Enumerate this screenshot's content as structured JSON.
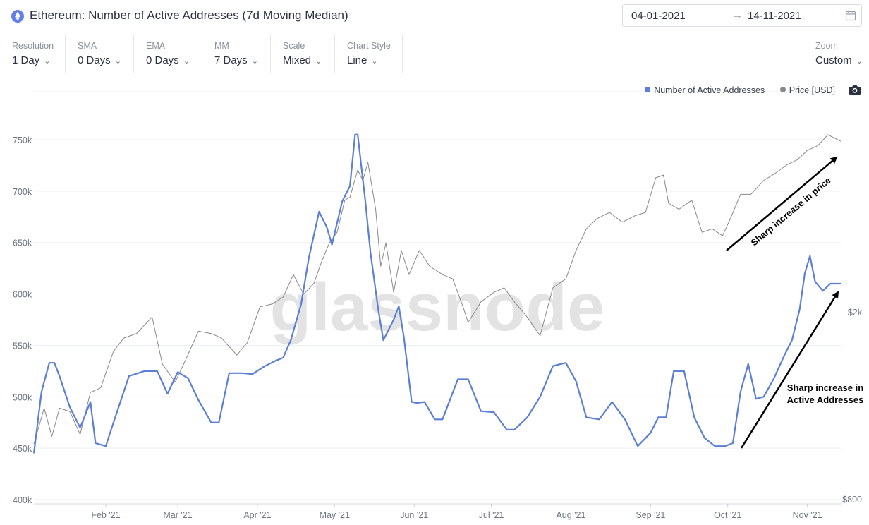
{
  "header": {
    "title": "Ethereum: Number of Active Addresses (7d Moving Median)",
    "date_start": "04-01-2021",
    "date_arrow": "→",
    "date_end": "14-11-2021"
  },
  "toolbar": {
    "controls": [
      {
        "label": "Resolution",
        "value": "1 Day"
      },
      {
        "label": "SMA",
        "value": "0 Days"
      },
      {
        "label": "EMA",
        "value": "0 Days"
      },
      {
        "label": "MM",
        "value": "7 Days"
      },
      {
        "label": "Scale",
        "value": "Mixed"
      },
      {
        "label": "Chart Style",
        "value": "Line"
      }
    ],
    "zoom": {
      "label": "Zoom",
      "value": "Custom"
    }
  },
  "legend": {
    "series1": "Number of Active Addresses",
    "series2": "Price [USD]"
  },
  "colors": {
    "addresses": "#5b7fd6",
    "price": "#888888",
    "annotation": "#000000",
    "eth_icon": "#627eea"
  },
  "icons": [
    "ethereum-icon",
    "calendar-icon",
    "chevron-down-icon",
    "camera-icon"
  ],
  "watermark": "glassnode",
  "chart_data": {
    "type": "line",
    "title": "Ethereum: Number of Active Addresses (7d Moving Median)",
    "x_ticks": [
      "Feb '21",
      "Mar '21",
      "Apr '21",
      "May '21",
      "Jun '21",
      "Jul '21",
      "Aug '21",
      "Sep '21",
      "Oct '21",
      "Nov '21"
    ],
    "y_left_ticks": [
      "400k",
      "450k",
      "500k",
      "550k",
      "600k",
      "650k",
      "700k",
      "750k"
    ],
    "y_left_range": [
      400000,
      760000
    ],
    "y_right_ticks": [
      "$800",
      "$2k"
    ],
    "y_right_scale": "log",
    "grid": true,
    "legend_position": "top-right",
    "series": [
      {
        "name": "Number of Active Addresses",
        "axis": "left",
        "x": [
          "2021-01-04",
          "2021-01-07",
          "2021-01-10",
          "2021-01-12",
          "2021-01-14",
          "2021-01-18",
          "2021-01-22",
          "2021-01-26",
          "2021-01-28",
          "2021-02-01",
          "2021-02-04",
          "2021-02-06",
          "2021-02-10",
          "2021-02-16",
          "2021-02-21",
          "2021-02-25",
          "2021-03-01",
          "2021-03-05",
          "2021-03-09",
          "2021-03-14",
          "2021-03-17",
          "2021-03-21",
          "2021-03-26",
          "2021-03-30",
          "2021-04-04",
          "2021-04-08",
          "2021-04-11",
          "2021-04-14",
          "2021-04-18",
          "2021-04-21",
          "2021-04-25",
          "2021-04-28",
          "2021-04-30",
          "2021-05-04",
          "2021-05-07",
          "2021-05-09",
          "2021-05-10",
          "2021-05-13",
          "2021-05-15",
          "2021-05-18",
          "2021-05-20",
          "2021-05-24",
          "2021-05-26",
          "2021-05-28",
          "2021-05-31",
          "2021-06-02",
          "2021-06-05",
          "2021-06-09",
          "2021-06-12",
          "2021-06-18",
          "2021-06-22",
          "2021-06-27",
          "2021-07-02",
          "2021-07-07",
          "2021-07-10",
          "2021-07-15",
          "2021-07-20",
          "2021-07-25",
          "2021-07-30",
          "2021-08-03",
          "2021-08-07",
          "2021-08-12",
          "2021-08-17",
          "2021-08-22",
          "2021-08-27",
          "2021-09-01",
          "2021-09-04",
          "2021-09-07",
          "2021-09-10",
          "2021-09-14",
          "2021-09-18",
          "2021-09-22",
          "2021-09-26",
          "2021-09-30",
          "2021-10-03",
          "2021-10-06",
          "2021-10-09",
          "2021-10-12",
          "2021-10-15",
          "2021-10-19",
          "2021-10-23",
          "2021-10-26",
          "2021-10-29",
          "2021-10-31",
          "2021-11-02",
          "2021-11-04",
          "2021-11-07",
          "2021-11-10",
          "2021-11-14"
        ],
        "values": [
          445000,
          505000,
          533000,
          533000,
          520000,
          490000,
          470000,
          495000,
          455000,
          452000,
          475000,
          490000,
          520000,
          525000,
          525000,
          503000,
          524000,
          518000,
          497000,
          475000,
          475000,
          523000,
          523000,
          522000,
          530000,
          535000,
          538000,
          555000,
          590000,
          635000,
          680000,
          665000,
          648000,
          690000,
          705000,
          755000,
          755000,
          690000,
          640000,
          585000,
          555000,
          575000,
          588000,
          558000,
          495000,
          494000,
          495000,
          478000,
          478000,
          517000,
          517000,
          486000,
          485000,
          468000,
          468000,
          480000,
          500000,
          530000,
          533000,
          515000,
          480000,
          478000,
          495000,
          478000,
          452000,
          465000,
          480000,
          480000,
          525000,
          525000,
          480000,
          460000,
          452000,
          452000,
          455000,
          505000,
          532000,
          498000,
          500000,
          518000,
          540000,
          555000,
          585000,
          620000,
          637000,
          612000,
          603000,
          610000,
          610000
        ]
      },
      {
        "name": "Price [USD]",
        "axis": "right",
        "x": [
          "2021-01-04",
          "2021-01-08",
          "2021-01-11",
          "2021-01-14",
          "2021-01-18",
          "2021-01-22",
          "2021-01-26",
          "2021-01-30",
          "2021-02-04",
          "2021-02-08",
          "2021-02-13",
          "2021-02-19",
          "2021-02-23",
          "2021-02-28",
          "2021-03-04",
          "2021-03-09",
          "2021-03-14",
          "2021-03-18",
          "2021-03-24",
          "2021-03-28",
          "2021-04-02",
          "2021-04-07",
          "2021-04-11",
          "2021-04-15",
          "2021-04-19",
          "2021-04-23",
          "2021-04-26",
          "2021-04-29",
          "2021-05-02",
          "2021-05-05",
          "2021-05-07",
          "2021-05-10",
          "2021-05-12",
          "2021-05-14",
          "2021-05-17",
          "2021-05-19",
          "2021-05-21",
          "2021-05-24",
          "2021-05-27",
          "2021-05-30",
          "2021-06-03",
          "2021-06-07",
          "2021-06-12",
          "2021-06-16",
          "2021-06-20",
          "2021-06-22",
          "2021-06-27",
          "2021-07-02",
          "2021-07-06",
          "2021-07-10",
          "2021-07-15",
          "2021-07-20",
          "2021-07-25",
          "2021-07-30",
          "2021-08-03",
          "2021-08-07",
          "2021-08-11",
          "2021-08-16",
          "2021-08-21",
          "2021-08-26",
          "2021-08-30",
          "2021-09-03",
          "2021-09-06",
          "2021-09-08",
          "2021-09-12",
          "2021-09-17",
          "2021-09-21",
          "2021-09-25",
          "2021-09-29",
          "2021-10-02",
          "2021-10-06",
          "2021-10-10",
          "2021-10-15",
          "2021-10-20",
          "2021-10-24",
          "2021-10-28",
          "2021-11-01",
          "2021-11-05",
          "2021-11-09",
          "2021-11-14"
        ],
        "values": [
          1050,
          1250,
          1090,
          1250,
          1230,
          1100,
          1350,
          1380,
          1650,
          1760,
          1800,
          1950,
          1550,
          1420,
          1580,
          1820,
          1800,
          1760,
          1620,
          1720,
          2050,
          2080,
          2150,
          2400,
          2180,
          2300,
          2560,
          2800,
          2950,
          3450,
          3500,
          4000,
          3800,
          4150,
          3300,
          2500,
          2800,
          2200,
          2700,
          2400,
          2700,
          2500,
          2400,
          2350,
          2050,
          1900,
          2100,
          2200,
          2250,
          2100,
          1950,
          1780,
          2250,
          2350,
          2700,
          3000,
          3150,
          3250,
          3100,
          3200,
          3250,
          3850,
          3900,
          3400,
          3300,
          3450,
          2950,
          3000,
          2900,
          3150,
          3550,
          3550,
          3800,
          3950,
          4100,
          4200,
          4400,
          4500,
          4750,
          4600
        ]
      }
    ],
    "annotations": [
      "Sharp increase in price",
      "Sharp increase in Active Addresses"
    ]
  }
}
